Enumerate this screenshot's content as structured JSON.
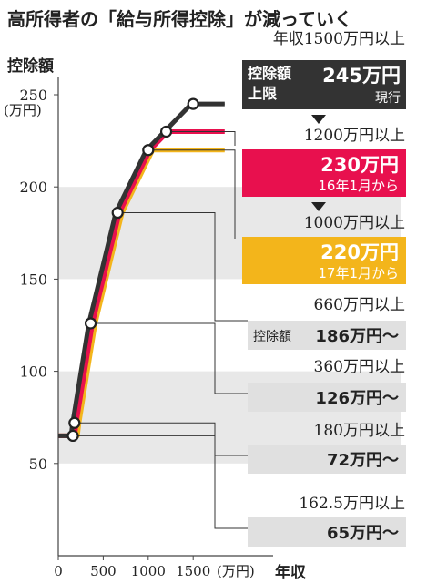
{
  "chart_data": {
    "type": "line",
    "title": "高所得者の「給与所得控除」が減っていく",
    "ylabel": "控除額",
    "yunit": "(万円)",
    "xunit": "(万円)",
    "xlabel": "年収",
    "ylim": [
      0,
      260
    ],
    "xlim": [
      0,
      1900
    ],
    "yticks": [
      50,
      100,
      150,
      200,
      250
    ],
    "xticks": [
      0,
      500,
      1000,
      1500
    ],
    "xtick_labels": [
      "0",
      "500",
      "1000",
      "1500"
    ],
    "ytick_labels": [
      "50",
      "100",
      "150",
      "200",
      "250"
    ],
    "grid_bands": [
      [
        50,
        100
      ],
      [
        150,
        200
      ]
    ],
    "colors": {
      "black": "#333333",
      "red": "#e8104e",
      "yellow": "#f3b51b",
      "band": "#e8e8e8",
      "callout": "#e0e0e0",
      "current_box": "#333333"
    },
    "series": [
      {
        "name": "現行",
        "color": "#333333",
        "x": [
          0,
          162.5,
          180,
          360,
          660,
          1000,
          1200,
          1500,
          1850
        ],
        "y": [
          65,
          65,
          72,
          126,
          186,
          220,
          230,
          245,
          245
        ]
      },
      {
        "name": "16年1月から",
        "color": "#e8104e",
        "x": [
          0,
          162.5,
          180,
          360,
          660,
          1000,
          1200,
          1850
        ],
        "y": [
          65,
          65,
          72,
          126,
          186,
          220,
          230,
          230
        ]
      },
      {
        "name": "17年1月から",
        "color": "#f3b51b",
        "x": [
          0,
          162.5,
          180,
          360,
          660,
          1000,
          1850
        ],
        "y": [
          65,
          65,
          72,
          126,
          186,
          220,
          220
        ]
      }
    ],
    "points": [
      {
        "x": 162.5,
        "y": 65
      },
      {
        "x": 180,
        "y": 72
      },
      {
        "x": 360,
        "y": 126
      },
      {
        "x": 660,
        "y": 186
      },
      {
        "x": 1000,
        "y": 220
      },
      {
        "x": 1200,
        "y": 230
      },
      {
        "x": 1500,
        "y": 245
      }
    ],
    "annotations": [
      {
        "id": "a1500",
        "income": "年収1500万円以上",
        "box_line1": "控除額",
        "box_line2": "上限",
        "amount": "245万円",
        "note": "現行",
        "style": "dark"
      },
      {
        "id": "a1200",
        "income": "1200万円以上",
        "amount": "230万円",
        "note": "16年1月から",
        "style": "red"
      },
      {
        "id": "a1000",
        "income": "1000万円以上",
        "amount": "220万円",
        "note": "17年1月から",
        "style": "yellow"
      },
      {
        "id": "a660",
        "income": "660万円以上",
        "prefix": "控除額",
        "amount": "186万円～",
        "style": "gray"
      },
      {
        "id": "a360",
        "income": "360万円以上",
        "amount": "126万円～",
        "style": "gray"
      },
      {
        "id": "a180",
        "income": "180万円以上",
        "amount": "72万円～",
        "style": "gray"
      },
      {
        "id": "a162",
        "income": "162.5万円以上",
        "amount": "65万円～",
        "style": "gray"
      }
    ]
  }
}
